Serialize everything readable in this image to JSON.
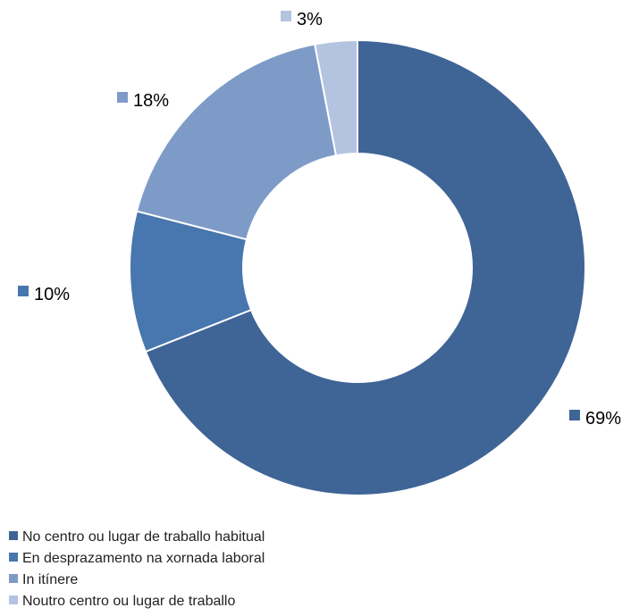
{
  "chart_data": {
    "type": "pie",
    "variant": "donut",
    "categories": [
      "No centro ou lugar de traballo habitual",
      "En desprazamento na xornada laboral",
      "In itínere",
      "Noutro centro ou lugar de traballo"
    ],
    "values": [
      69,
      10,
      18,
      3
    ],
    "value_labels": [
      "69%",
      "10%",
      "18%",
      "3%"
    ],
    "colors": [
      "#3F6496",
      "#4876AE",
      "#7E9BC8",
      "#B4C3E0"
    ],
    "legend_position": "bottom-left",
    "start_angle_deg": 0,
    "direction": "clockwise",
    "title": ""
  }
}
